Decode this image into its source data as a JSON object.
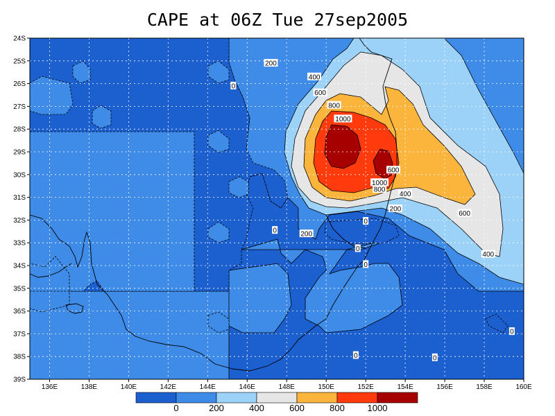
{
  "title": "CAPE at 06Z Tue 27sep2005",
  "map": {
    "lat_labels": [
      "24S",
      "25S",
      "26S",
      "27S",
      "28S",
      "29S",
      "30S",
      "31S",
      "32S",
      "33S",
      "34S",
      "35S",
      "36S",
      "37S",
      "38S",
      "39S"
    ],
    "lon_labels": [
      "136E",
      "138E",
      "140E",
      "142E",
      "144E",
      "146E",
      "148E",
      "150E",
      "152E",
      "154E",
      "156E",
      "158E",
      "160E"
    ],
    "lon_range": [
      135,
      160
    ],
    "lat_range": [
      -39,
      -24
    ],
    "contour_labels": [
      {
        "text": "200",
        "lon": 147.2,
        "lat": -25.1
      },
      {
        "text": "400",
        "lon": 149.4,
        "lat": -25.7
      },
      {
        "text": "0",
        "lon": 145.3,
        "lat": -26.1
      },
      {
        "text": "600",
        "lon": 149.7,
        "lat": -26.4
      },
      {
        "text": "800",
        "lon": 150.4,
        "lat": -26.95
      },
      {
        "text": "1000",
        "lon": 150.85,
        "lat": -27.55
      },
      {
        "text": "600",
        "lon": 153.4,
        "lat": -29.8
      },
      {
        "text": "1000",
        "lon": 152.7,
        "lat": -30.35
      },
      {
        "text": "800",
        "lon": 152.7,
        "lat": -30.65
      },
      {
        "text": "400",
        "lon": 154.0,
        "lat": -30.85
      },
      {
        "text": "200",
        "lon": 153.5,
        "lat": -31.5
      },
      {
        "text": "600",
        "lon": 157.0,
        "lat": -31.7
      },
      {
        "text": "0",
        "lon": 147.4,
        "lat": -32.45
      },
      {
        "text": "200",
        "lon": 149.0,
        "lat": -32.6
      },
      {
        "text": "0",
        "lon": 152.0,
        "lat": -32.05
      },
      {
        "text": "0",
        "lon": 151.6,
        "lat": -33.25
      },
      {
        "text": "0",
        "lon": 152.0,
        "lat": -33.95
      },
      {
        "text": "400",
        "lon": 158.2,
        "lat": -33.5
      },
      {
        "text": "0",
        "lon": 159.4,
        "lat": -36.9
      },
      {
        "text": "0",
        "lon": 151.5,
        "lat": -37.95
      },
      {
        "text": "0",
        "lon": 155.5,
        "lat": -38.05
      }
    ]
  },
  "colorbar": {
    "colors": [
      "#1c5fcf",
      "#3f8ce8",
      "#9dd2f8",
      "#e6e6e6",
      "#fbb53c",
      "#ff3b0e",
      "#a60000"
    ],
    "labels": [
      "0",
      "200",
      "400",
      "600",
      "800",
      "1000"
    ]
  }
}
